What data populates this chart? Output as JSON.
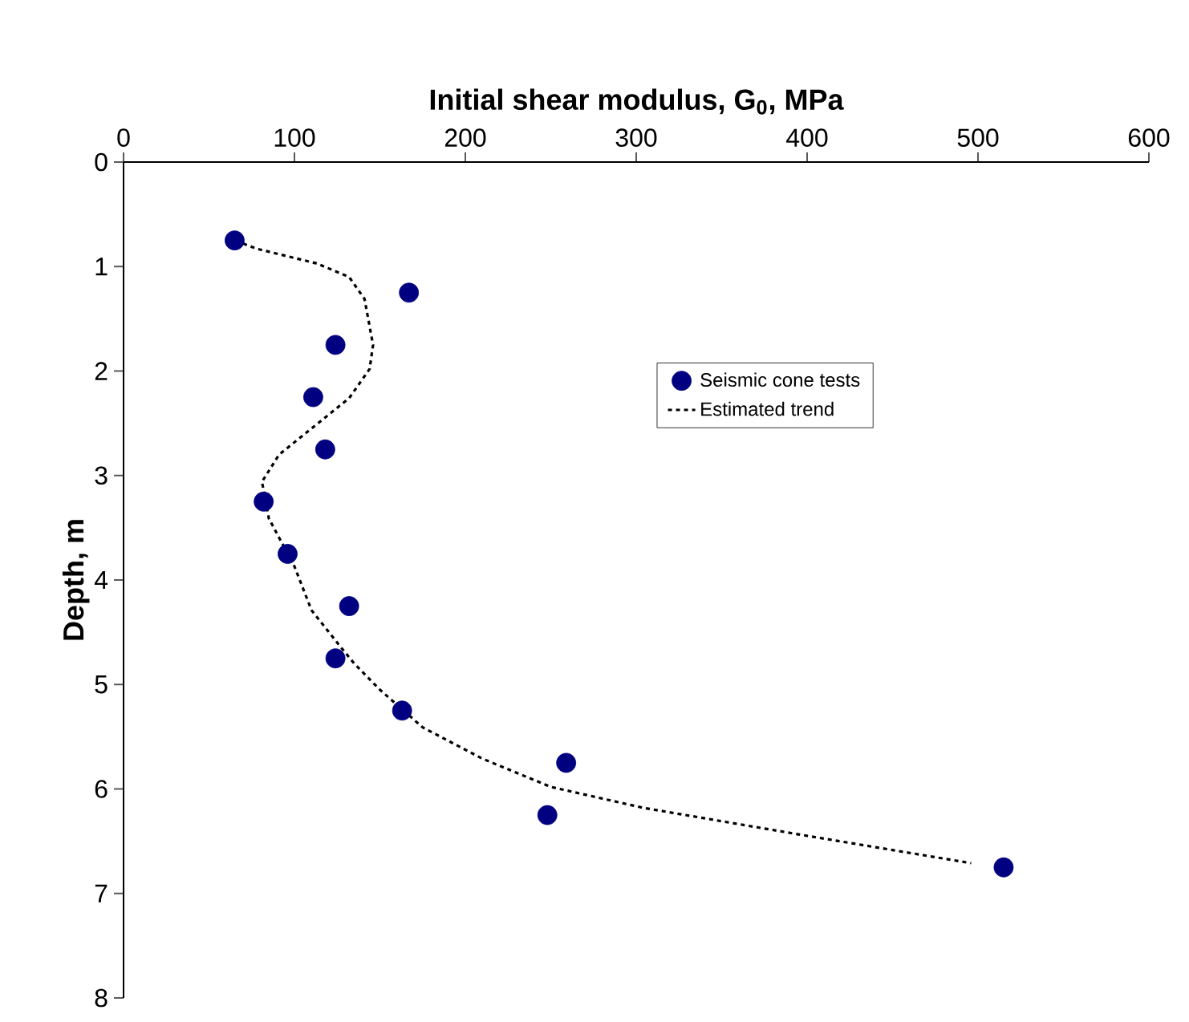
{
  "chart_data": {
    "type": "scatter",
    "xlabel": "Initial shear modulus, G$_{0}$, MPa",
    "ylabel": "Depth, m",
    "xlim": [
      0,
      600
    ],
    "xticks": [
      0,
      100,
      200,
      300,
      400,
      500,
      600
    ],
    "ylim": [
      8,
      0
    ],
    "yticks": [
      0,
      1,
      2,
      3,
      4,
      5,
      6,
      7,
      8
    ],
    "grid": false,
    "legend": "right",
    "series": [
      {
        "name": "Seismic cone tests",
        "marker": "circle",
        "color": "#000080",
        "x": [
          65,
          167,
          124,
          111,
          118,
          82,
          96,
          132,
          124,
          163,
          259,
          248,
          515
        ],
        "values": [
          0.75,
          1.25,
          1.75,
          2.25,
          2.75,
          3.25,
          3.75,
          4.25,
          4.75,
          5.25,
          5.75,
          6.25,
          6.75
        ]
      },
      {
        "name": "Estimated trend",
        "type": "line",
        "marker": "none",
        "line_style": "dotted",
        "color": "#000000",
        "x": [
          70,
          78,
          113,
          132,
          141,
          146,
          144,
          132,
          110,
          91,
          81,
          85,
          100,
          110,
          127,
          135,
          150,
          175,
          210,
          250,
          304,
          397,
          496
        ],
        "values": [
          0.78,
          0.83,
          0.97,
          1.1,
          1.31,
          1.75,
          1.98,
          2.26,
          2.55,
          2.8,
          3.06,
          3.41,
          3.87,
          4.29,
          4.64,
          4.8,
          5.05,
          5.41,
          5.71,
          5.98,
          6.18,
          6.44,
          6.71
        ]
      }
    ]
  }
}
